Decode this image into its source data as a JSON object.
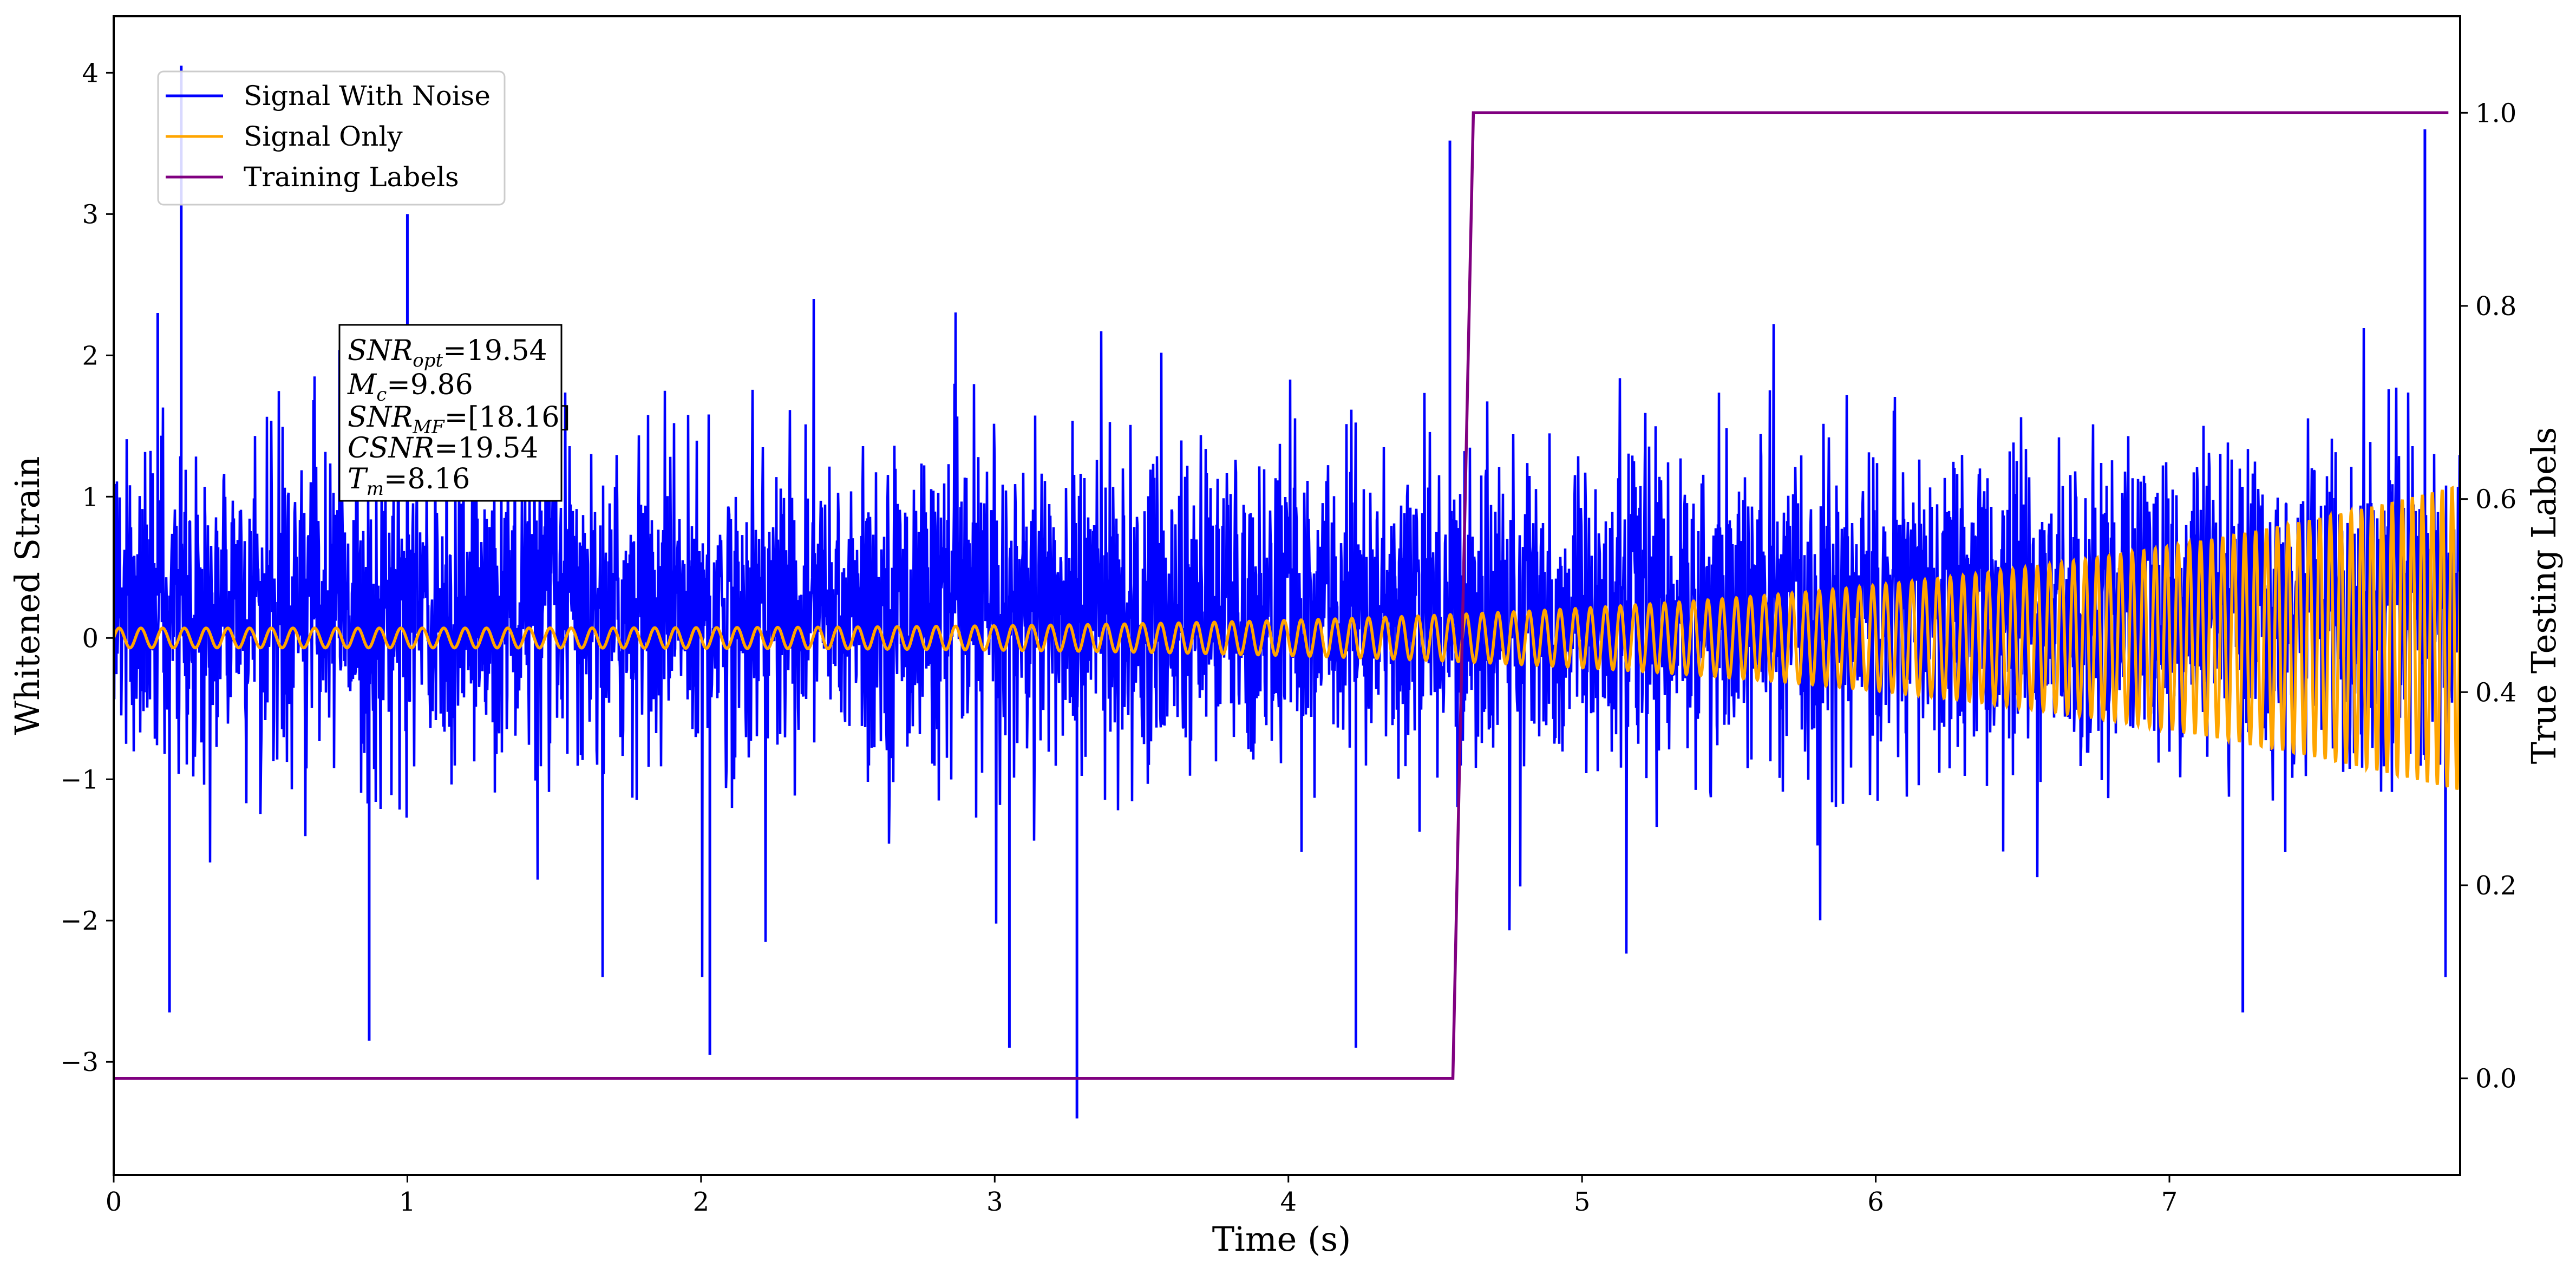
{
  "chart_data": {
    "type": "line",
    "xlabel": "Time (s)",
    "ylabel_left": "Whitened Strain",
    "ylabel_right": "True Testing Labels",
    "xlim": [
      0,
      7.99
    ],
    "ylim_left": [
      -3.8,
      4.4
    ],
    "ylim_right": [
      -0.1,
      1.1
    ],
    "x_ticks": [
      "0",
      "1",
      "2",
      "3",
      "4",
      "5",
      "6",
      "7"
    ],
    "y_left_ticks": [
      "−3",
      "−2",
      "−1",
      "0",
      "1",
      "2",
      "3",
      "4"
    ],
    "y_right_ticks": [
      "0.0",
      "0.2",
      "0.4",
      "0.6",
      "0.8",
      "1.0"
    ],
    "grid": false,
    "legend_placement": "top-left",
    "series": [
      {
        "name": "Signal With Noise",
        "color": "#0000ff",
        "axis": "left",
        "description_values": {
          "typical_range": [
            -1.5,
            1.9
          ],
          "min": -3.4,
          "max": 4.05
        },
        "spikes": [
          [
            0.23,
            4.05
          ],
          [
            1.0,
            3.0
          ],
          [
            4.55,
            3.52
          ],
          [
            7.87,
            3.6
          ],
          [
            0.15,
            2.3
          ],
          [
            3.28,
            -3.4
          ],
          [
            2.03,
            -2.95
          ],
          [
            0.87,
            -2.85
          ],
          [
            4.23,
            -2.9
          ],
          [
            3.05,
            -2.9
          ],
          [
            0.19,
            -2.65
          ],
          [
            7.25,
            -2.65
          ]
        ]
      },
      {
        "name": "Signal Only",
        "color": "#ffa500",
        "axis": "left",
        "chirp": {
          "start_amplitude": 0.07,
          "end_amplitude": 1.08,
          "start_frequency_hz": 13.5,
          "end_frequency_hz": 30
        }
      },
      {
        "name": "Training Labels",
        "color": "#800080",
        "axis": "right",
        "x": [
          0,
          4.56,
          4.63,
          7.95
        ],
        "y": [
          0,
          0,
          1,
          1
        ]
      }
    ],
    "annotation": {
      "line1_sym": "SNR",
      "line1_sub": "opt",
      "line1_val": "=19.54",
      "line2_sym": "M",
      "line2_sub": "c",
      "line2_val": "=9.86",
      "line3_sym": "SNR",
      "line3_sub": "MF",
      "line3_val": "=[18.16]",
      "line4_sym": "CSNR",
      "line4_val": "=19.54",
      "line5_sym": "T",
      "line5_sub": "m",
      "line5_val": "=8.16"
    }
  }
}
